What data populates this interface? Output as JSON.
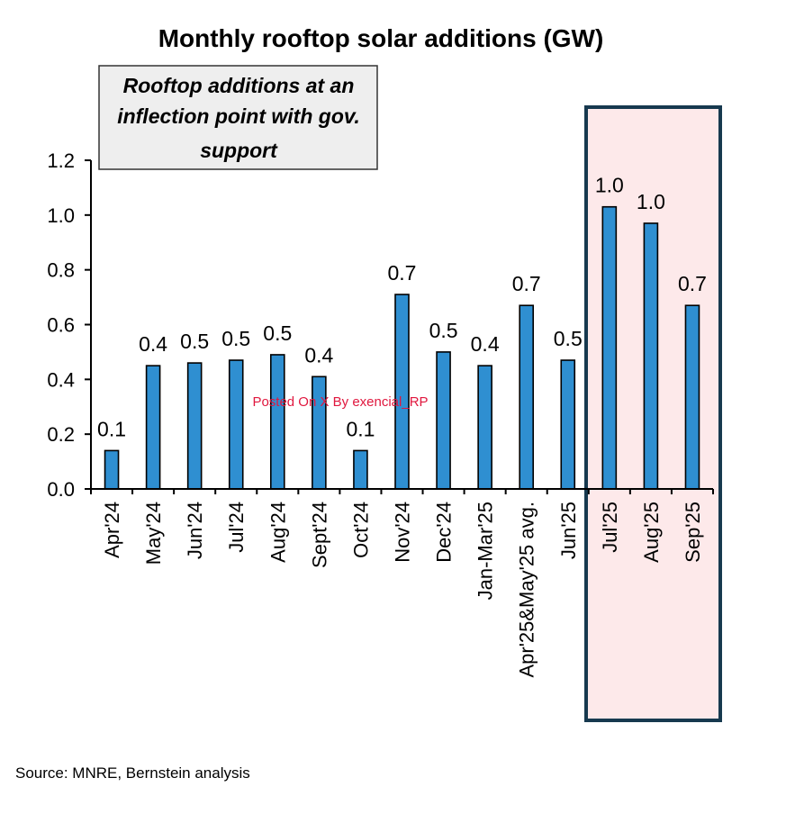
{
  "chart_data": {
    "type": "bar",
    "title": "Monthly rooftop solar additions (GW)",
    "categories": [
      "Apr'24",
      "May'24",
      "Jun'24",
      "Jul'24",
      "Aug'24",
      "Sept'24",
      "Oct'24",
      "Nov'24",
      "Dec'24",
      "Jan-Mar'25",
      "Apr'25&May'25 avg.",
      "Jun'25",
      "Jul'25",
      "Aug'25",
      "Sep'25"
    ],
    "values": [
      0.14,
      0.45,
      0.46,
      0.47,
      0.49,
      0.41,
      0.14,
      0.71,
      0.5,
      0.45,
      0.67,
      0.47,
      1.03,
      0.97,
      0.67
    ],
    "data_labels": [
      "0.1",
      "0.4",
      "0.5",
      "0.5",
      "0.5",
      "0.4",
      "0.1",
      "0.7",
      "0.5",
      "0.4",
      "0.7",
      "0.5",
      "1.0",
      "1.0",
      "0.7"
    ],
    "yticks": [
      "0.0",
      "0.2",
      "0.4",
      "0.6",
      "0.8",
      "1.0",
      "1.2"
    ],
    "ylim": [
      0,
      1.2
    ],
    "ytick_step": 0.2,
    "xlabel": "",
    "ylabel": "",
    "grid": false,
    "highlight": {
      "categories": [
        "Jul'25",
        "Aug'25",
        "Sep'25"
      ],
      "fill_color": "#fde9ea",
      "border_color": "#17394f"
    },
    "annotation": "Rooftop additions at an inflection point with gov. support",
    "annotation_lines": [
      "Rooftop additions at an",
      "inflection point with gov.",
      "support"
    ],
    "colors": {
      "bar_fill": "#2f8fd1",
      "bar_stroke": "#000000",
      "annotation_fill": "#eeeeee",
      "watermark": "#e0173e"
    }
  },
  "watermark": "Posted On X By exencial_RP",
  "source": "Source: MNRE, Bernstein analysis"
}
